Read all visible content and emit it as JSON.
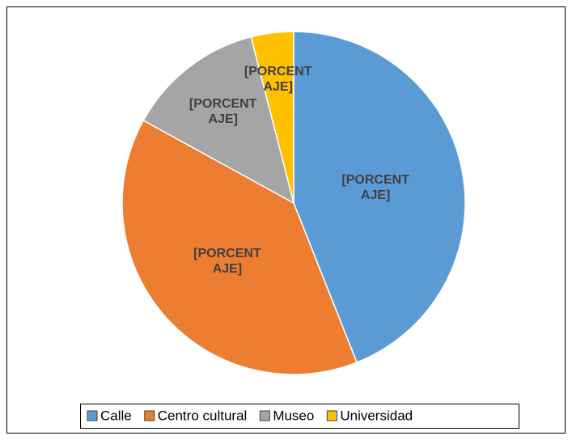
{
  "chart_data": {
    "type": "pie",
    "categories": [
      "Calle",
      "Centro cultural",
      "Museo",
      "Universidad"
    ],
    "values": [
      44,
      39,
      13,
      4
    ],
    "value_labels": [
      "[PORCENTAJE]",
      "[PORCENTAJE]",
      "[PORCENTAJE]",
      "[PORCENTAJE]"
    ],
    "colors": [
      "#5b9bd5",
      "#ed7d31",
      "#a5a5a5",
      "#ffc000"
    ],
    "legend": "bottom"
  }
}
